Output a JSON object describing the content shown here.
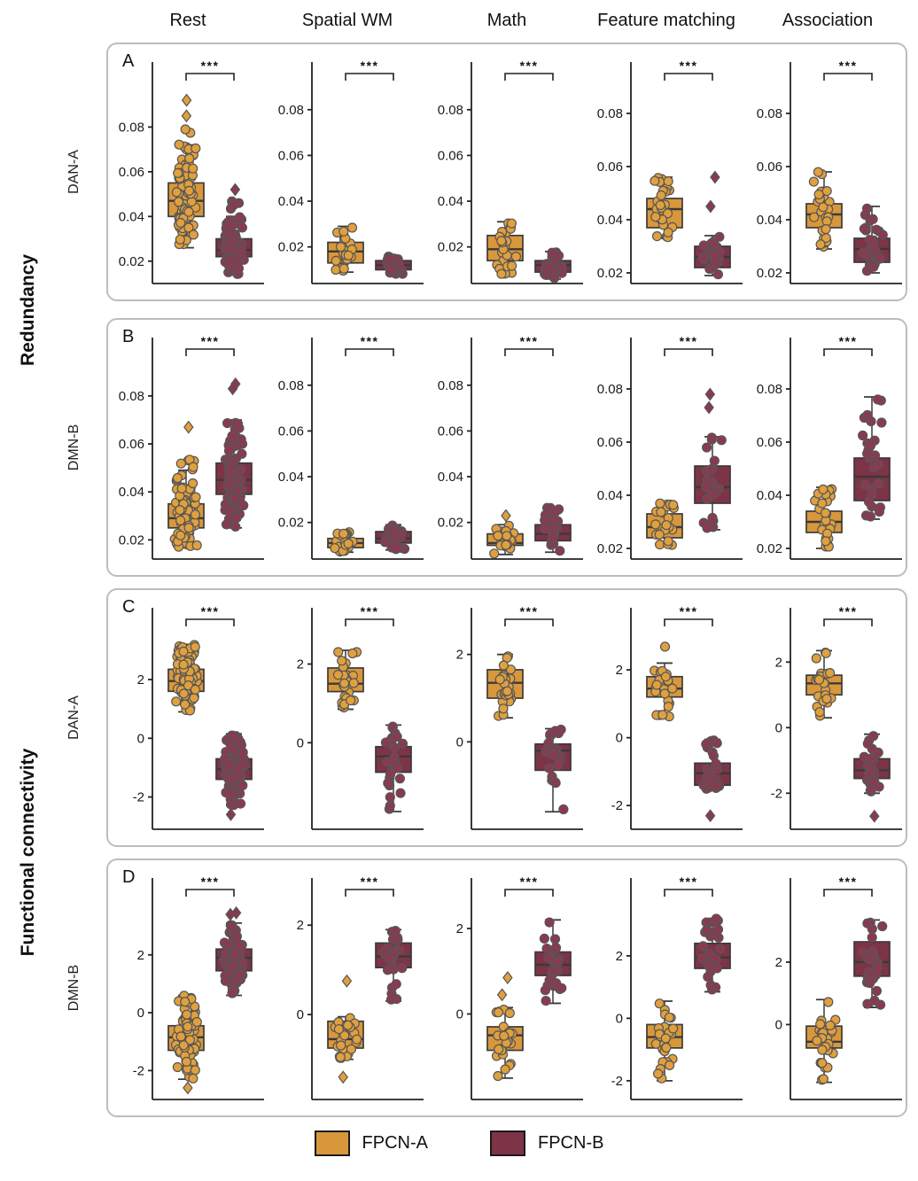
{
  "columns": [
    "Rest",
    "Spatial WM",
    "Math",
    "Feature matching",
    "Association"
  ],
  "row_groups": [
    {
      "label": "Redundancy"
    },
    {
      "label": "Functional connectivity"
    }
  ],
  "legend": {
    "items": [
      {
        "label": "FPCN-A",
        "color": "#D9973B"
      },
      {
        "label": "FPCN-B",
        "color": "#7E3347"
      }
    ]
  },
  "colors": {
    "fpcn_a": "#D9973B",
    "fpcn_b": "#7E3347",
    "fpcn_a_point": "#E0A03E",
    "fpcn_b_point": "#8A3A50",
    "box_stroke": "#3a3a3a",
    "point_stroke": "#565656",
    "axis": "#222222",
    "panel_border": "#bdbdbd"
  },
  "chart_data": {
    "type": "box",
    "description": "Box plots with jittered subject points comparing FPCN-A and FPCN-B across five conditions; all comparisons significant at ***",
    "panels": [
      {
        "letter": "A",
        "network": "DAN-A",
        "group": "Redundancy",
        "plots": [
          {
            "condition": "Rest",
            "sig": "***",
            "ylim": [
              0.01,
              0.098
            ],
            "yticks": [
              0.02,
              0.04,
              0.06,
              0.08
            ],
            "fpcn_a": {
              "q1": 0.04,
              "median": 0.047,
              "q3": 0.055,
              "whisker_lo": 0.026,
              "whisker_hi": 0.072,
              "outliers": [
                0.085,
                0.092
              ],
              "points_range": [
                0.026,
                0.079
              ],
              "n": 90
            },
            "fpcn_b": {
              "q1": 0.022,
              "median": 0.025,
              "q3": 0.03,
              "whisker_lo": 0.014,
              "whisker_hi": 0.04,
              "outliers": [
                0.052
              ],
              "points_range": [
                0.014,
                0.047
              ],
              "n": 90
            }
          },
          {
            "condition": "Spatial WM",
            "sig": "***",
            "ylim": [
              0.004,
              0.09
            ],
            "yticks": [
              0.02,
              0.04,
              0.06,
              0.08
            ],
            "fpcn_a": {
              "q1": 0.013,
              "median": 0.018,
              "q3": 0.022,
              "whisker_lo": 0.009,
              "whisker_hi": 0.029,
              "outliers": [],
              "n": 26
            },
            "fpcn_b": {
              "q1": 0.01,
              "median": 0.012,
              "q3": 0.014,
              "whisker_lo": 0.008,
              "whisker_hi": 0.016,
              "outliers": [],
              "n": 26
            }
          },
          {
            "condition": "Math",
            "sig": "***",
            "ylim": [
              0.004,
              0.09
            ],
            "yticks": [
              0.02,
              0.04,
              0.06,
              0.08
            ],
            "fpcn_a": {
              "q1": 0.014,
              "median": 0.019,
              "q3": 0.025,
              "whisker_lo": 0.008,
              "whisker_hi": 0.031,
              "outliers": [],
              "n": 26
            },
            "fpcn_b": {
              "q1": 0.009,
              "median": 0.012,
              "q3": 0.014,
              "whisker_lo": 0.006,
              "whisker_hi": 0.018,
              "outliers": [],
              "n": 26
            }
          },
          {
            "condition": "Feature matching",
            "sig": "***",
            "ylim": [
              0.016,
              0.09
            ],
            "yticks": [
              0.02,
              0.04,
              0.06,
              0.08
            ],
            "fpcn_a": {
              "q1": 0.037,
              "median": 0.044,
              "q3": 0.048,
              "whisker_lo": 0.033,
              "whisker_hi": 0.056,
              "outliers": [],
              "n": 26
            },
            "fpcn_b": {
              "q1": 0.022,
              "median": 0.026,
              "q3": 0.03,
              "whisker_lo": 0.019,
              "whisker_hi": 0.034,
              "outliers": [
                0.045,
                0.056
              ],
              "n": 24
            }
          },
          {
            "condition": "Association",
            "sig": "***",
            "ylim": [
              0.016,
              0.09
            ],
            "yticks": [
              0.02,
              0.04,
              0.06,
              0.08
            ],
            "fpcn_a": {
              "q1": 0.037,
              "median": 0.042,
              "q3": 0.046,
              "whisker_lo": 0.029,
              "whisker_hi": 0.058,
              "outliers": [],
              "n": 26
            },
            "fpcn_b": {
              "q1": 0.024,
              "median": 0.029,
              "q3": 0.033,
              "whisker_lo": 0.02,
              "whisker_hi": 0.045,
              "outliers": [],
              "n": 26
            }
          }
        ]
      },
      {
        "letter": "B",
        "network": "DMN-B",
        "group": "Redundancy",
        "plots": [
          {
            "condition": "Rest",
            "sig": "***",
            "ylim": [
              0.012,
              0.094
            ],
            "yticks": [
              0.02,
              0.04,
              0.06,
              0.08
            ],
            "fpcn_a": {
              "q1": 0.025,
              "median": 0.029,
              "q3": 0.035,
              "whisker_lo": 0.017,
              "whisker_hi": 0.049,
              "outliers": [
                0.067
              ],
              "points_range": [
                0.017,
                0.054
              ],
              "n": 90
            },
            "fpcn_b": {
              "q1": 0.039,
              "median": 0.045,
              "q3": 0.052,
              "whisker_lo": 0.025,
              "whisker_hi": 0.07,
              "outliers": [
                0.083,
                0.085
              ],
              "n": 90
            }
          },
          {
            "condition": "Spatial WM",
            "sig": "***",
            "ylim": [
              0.004,
              0.09
            ],
            "yticks": [
              0.02,
              0.04,
              0.06,
              0.08
            ],
            "fpcn_a": {
              "q1": 0.009,
              "median": 0.011,
              "q3": 0.013,
              "whisker_lo": 0.007,
              "whisker_hi": 0.016,
              "outliers": [],
              "n": 26
            },
            "fpcn_b": {
              "q1": 0.011,
              "median": 0.013,
              "q3": 0.016,
              "whisker_lo": 0.008,
              "whisker_hi": 0.019,
              "outliers": [],
              "n": 26
            }
          },
          {
            "condition": "Math",
            "sig": "***",
            "ylim": [
              0.004,
              0.09
            ],
            "yticks": [
              0.02,
              0.04,
              0.06,
              0.08
            ],
            "fpcn_a": {
              "q1": 0.01,
              "median": 0.011,
              "q3": 0.015,
              "whisker_lo": 0.006,
              "whisker_hi": 0.019,
              "outliers": [
                0.023
              ],
              "n": 26
            },
            "fpcn_b": {
              "q1": 0.012,
              "median": 0.015,
              "q3": 0.019,
              "whisker_lo": 0.007,
              "whisker_hi": 0.024,
              "points_range": [
                0.007,
                0.027
              ],
              "n": 26
            }
          },
          {
            "condition": "Feature matching",
            "sig": "***",
            "ylim": [
              0.016,
              0.09
            ],
            "yticks": [
              0.02,
              0.04,
              0.06,
              0.08
            ],
            "fpcn_a": {
              "q1": 0.024,
              "median": 0.028,
              "q3": 0.033,
              "whisker_lo": 0.021,
              "whisker_hi": 0.037,
              "outliers": [],
              "n": 26
            },
            "fpcn_b": {
              "q1": 0.037,
              "median": 0.043,
              "q3": 0.051,
              "whisker_lo": 0.027,
              "whisker_hi": 0.062,
              "outliers": [
                0.073,
                0.078
              ],
              "n": 24
            }
          },
          {
            "condition": "Association",
            "sig": "***",
            "ylim": [
              0.016,
              0.09
            ],
            "yticks": [
              0.02,
              0.04,
              0.06,
              0.08
            ],
            "fpcn_a": {
              "q1": 0.026,
              "median": 0.03,
              "q3": 0.034,
              "whisker_lo": 0.02,
              "whisker_hi": 0.043,
              "outliers": [],
              "n": 26
            },
            "fpcn_b": {
              "q1": 0.038,
              "median": 0.047,
              "q3": 0.054,
              "whisker_lo": 0.031,
              "whisker_hi": 0.077,
              "outliers": [],
              "n": 26
            }
          }
        ]
      },
      {
        "letter": "C",
        "network": "DAN-A",
        "group": "Functional connectivity",
        "plots": [
          {
            "condition": "Rest",
            "sig": "***",
            "ylim": [
              -3.1,
              3.6
            ],
            "yticks": [
              -2,
              0,
              2
            ],
            "fpcn_a": {
              "q1": 1.6,
              "median": 1.95,
              "q3": 2.35,
              "whisker_lo": 0.9,
              "whisker_hi": 3.2,
              "outliers": [],
              "n": 90
            },
            "fpcn_b": {
              "q1": -1.4,
              "median": -1.05,
              "q3": -0.7,
              "whisker_lo": -2.3,
              "whisker_hi": 0.15,
              "outliers": [
                -2.6
              ],
              "n": 90
            }
          },
          {
            "condition": "Spatial WM",
            "sig": "***",
            "ylim": [
              -2.2,
              2.8
            ],
            "yticks": [
              0,
              2
            ],
            "fpcn_a": {
              "q1": 1.3,
              "median": 1.5,
              "q3": 1.9,
              "whisker_lo": 0.85,
              "whisker_hi": 2.35,
              "outliers": [],
              "n": 26
            },
            "fpcn_b": {
              "q1": -0.75,
              "median": -0.35,
              "q3": -0.1,
              "whisker_lo": -1.75,
              "whisker_hi": 0.45,
              "outliers": [],
              "n": 26
            }
          },
          {
            "condition": "Math",
            "sig": "***",
            "ylim": [
              -2.0,
              2.5
            ],
            "yticks": [
              0,
              2
            ],
            "fpcn_a": {
              "q1": 1.0,
              "median": 1.35,
              "q3": 1.65,
              "whisker_lo": 0.55,
              "whisker_hi": 2.0,
              "outliers": [],
              "n": 26
            },
            "fpcn_b": {
              "q1": -0.65,
              "median": -0.2,
              "q3": -0.05,
              "whisker_lo": -1.6,
              "whisker_hi": 0.3,
              "outliers": [],
              "n": 26
            }
          },
          {
            "condition": "Feature matching",
            "sig": "***",
            "ylim": [
              -2.7,
              3.1
            ],
            "yticks": [
              -2,
              0,
              2
            ],
            "fpcn_a": {
              "q1": 1.2,
              "median": 1.45,
              "q3": 1.8,
              "whisker_lo": 0.6,
              "whisker_hi": 2.2,
              "points_range": [
                0.6,
                2.75
              ],
              "outliers": [],
              "n": 26
            },
            "fpcn_b": {
              "q1": -1.4,
              "median": -1.05,
              "q3": -0.75,
              "whisker_lo": -1.55,
              "whisker_hi": -0.05,
              "outliers": [
                -2.3
              ],
              "n": 24
            }
          },
          {
            "condition": "Association",
            "sig": "***",
            "ylim": [
              -3.1,
              2.9
            ],
            "yticks": [
              -2,
              0,
              2
            ],
            "fpcn_a": {
              "q1": 1.0,
              "median": 1.35,
              "q3": 1.6,
              "whisker_lo": 0.3,
              "whisker_hi": 2.35,
              "outliers": [],
              "n": 26
            },
            "fpcn_b": {
              "q1": -1.55,
              "median": -1.3,
              "q3": -0.95,
              "whisker_lo": -2.0,
              "whisker_hi": -0.2,
              "outliers": [
                -2.7
              ],
              "n": 25
            }
          }
        ]
      },
      {
        "letter": "D",
        "network": "DMN-B",
        "group": "Functional connectivity",
        "plots": [
          {
            "condition": "Rest",
            "sig": "***",
            "ylim": [
              -3.0,
              3.8
            ],
            "yticks": [
              -2,
              0,
              2
            ],
            "fpcn_a": {
              "q1": -1.3,
              "median": -0.85,
              "q3": -0.45,
              "whisker_lo": -2.3,
              "whisker_hi": 0.6,
              "outliers": [
                -2.6
              ],
              "n": 90
            },
            "fpcn_b": {
              "q1": 1.45,
              "median": 1.9,
              "q3": 2.2,
              "whisker_lo": 0.6,
              "whisker_hi": 3.1,
              "outliers": [
                3.4,
                3.45
              ],
              "n": 90
            }
          },
          {
            "condition": "Spatial WM",
            "sig": "***",
            "ylim": [
              -1.9,
              2.5
            ],
            "yticks": [
              0,
              2
            ],
            "fpcn_a": {
              "q1": -0.75,
              "median": -0.55,
              "q3": -0.15,
              "whisker_lo": -1.0,
              "whisker_hi": -0.05,
              "outliers": [
                0.75,
                -1.4
              ],
              "n": 24
            },
            "fpcn_b": {
              "q1": 1.05,
              "median": 1.3,
              "q3": 1.6,
              "whisker_lo": 0.3,
              "whisker_hi": 1.9,
              "outliers": [],
              "n": 26
            }
          },
          {
            "condition": "Math",
            "sig": "***",
            "ylim": [
              -2.0,
              2.6
            ],
            "yticks": [
              0,
              2
            ],
            "fpcn_a": {
              "q1": -0.85,
              "median": -0.5,
              "q3": -0.3,
              "whisker_lo": -1.5,
              "whisker_hi": 0.15,
              "outliers": [
                0.45,
                0.85
              ],
              "n": 24
            },
            "fpcn_b": {
              "q1": 0.9,
              "median": 1.15,
              "q3": 1.45,
              "whisker_lo": 0.25,
              "whisker_hi": 2.2,
              "outliers": [],
              "n": 26
            }
          },
          {
            "condition": "Feature matching",
            "sig": "***",
            "ylim": [
              -2.6,
              3.7
            ],
            "yticks": [
              -2,
              0,
              2
            ],
            "fpcn_a": {
              "q1": -0.95,
              "median": -0.6,
              "q3": -0.2,
              "whisker_lo": -2.0,
              "whisker_hi": 0.55,
              "outliers": [],
              "n": 26
            },
            "fpcn_b": {
              "q1": 1.6,
              "median": 1.95,
              "q3": 2.4,
              "whisker_lo": 0.85,
              "whisker_hi": 3.2,
              "outliers": [],
              "n": 26
            }
          },
          {
            "condition": "Association",
            "sig": "***",
            "ylim": [
              -2.4,
              3.9
            ],
            "yticks": [
              0,
              2
            ],
            "fpcn_a": {
              "q1": -0.75,
              "median": -0.55,
              "q3": -0.05,
              "whisker_lo": -1.85,
              "whisker_hi": 0.8,
              "outliers": [],
              "n": 26
            },
            "fpcn_b": {
              "q1": 1.55,
              "median": 2.0,
              "q3": 2.65,
              "whisker_lo": 0.55,
              "whisker_hi": 3.35,
              "outliers": [],
              "n": 26
            }
          }
        ]
      }
    ]
  }
}
